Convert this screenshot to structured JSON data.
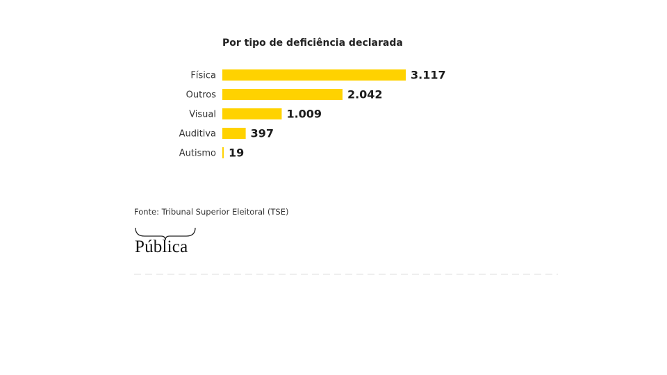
{
  "chart_data": {
    "type": "bar",
    "orientation": "horizontal",
    "title": "Por tipo de deficiência declarada",
    "categories": [
      "Física",
      "Outros",
      "Visual",
      "Auditiva",
      "Autismo"
    ],
    "values": [
      3117,
      2042,
      1009,
      397,
      19
    ],
    "value_labels": [
      "3.117",
      "2.042",
      "1.009",
      "397",
      "19"
    ],
    "xlim": [
      0,
      3117
    ],
    "grid": false,
    "legend": "none",
    "bar_color": "#FFD200"
  },
  "footer": {
    "source": "Fonte: Tribunal Superior Eleitoral (TSE)",
    "logo_text": "Pública"
  }
}
